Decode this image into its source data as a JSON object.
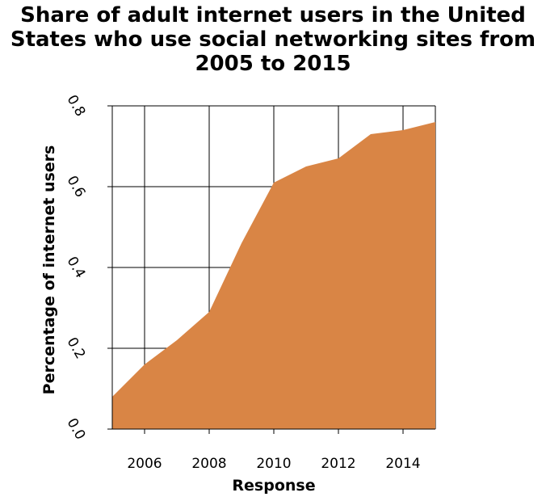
{
  "chart_data": {
    "type": "area",
    "title_lines": [
      "Share of adult internet users in the United",
      "States who use social networking sites from",
      "2005 to 2015"
    ],
    "xlabel": "Response",
    "ylabel": "Percentage of internet users",
    "x": [
      2005,
      2006,
      2007,
      2008,
      2009,
      2010,
      2011,
      2012,
      2013,
      2014,
      2015
    ],
    "values": [
      0.08,
      0.16,
      0.22,
      0.29,
      0.46,
      0.61,
      0.65,
      0.67,
      0.73,
      0.74,
      0.76
    ],
    "xlim": [
      2005,
      2015
    ],
    "ylim": [
      0,
      0.8
    ],
    "x_ticks": [
      2006,
      2008,
      2010,
      2012,
      2014
    ],
    "x_tick_labels": [
      "2006",
      "2008",
      "2010",
      "2012",
      "2014"
    ],
    "y_ticks": [
      0,
      0.2,
      0.4,
      0.6,
      0.8
    ],
    "y_tick_labels": [
      "0.0",
      "0.2",
      "0.4",
      "0.6",
      "0.8"
    ],
    "grid": true,
    "fill_color": "#d98545",
    "grid_color": "#000000"
  }
}
